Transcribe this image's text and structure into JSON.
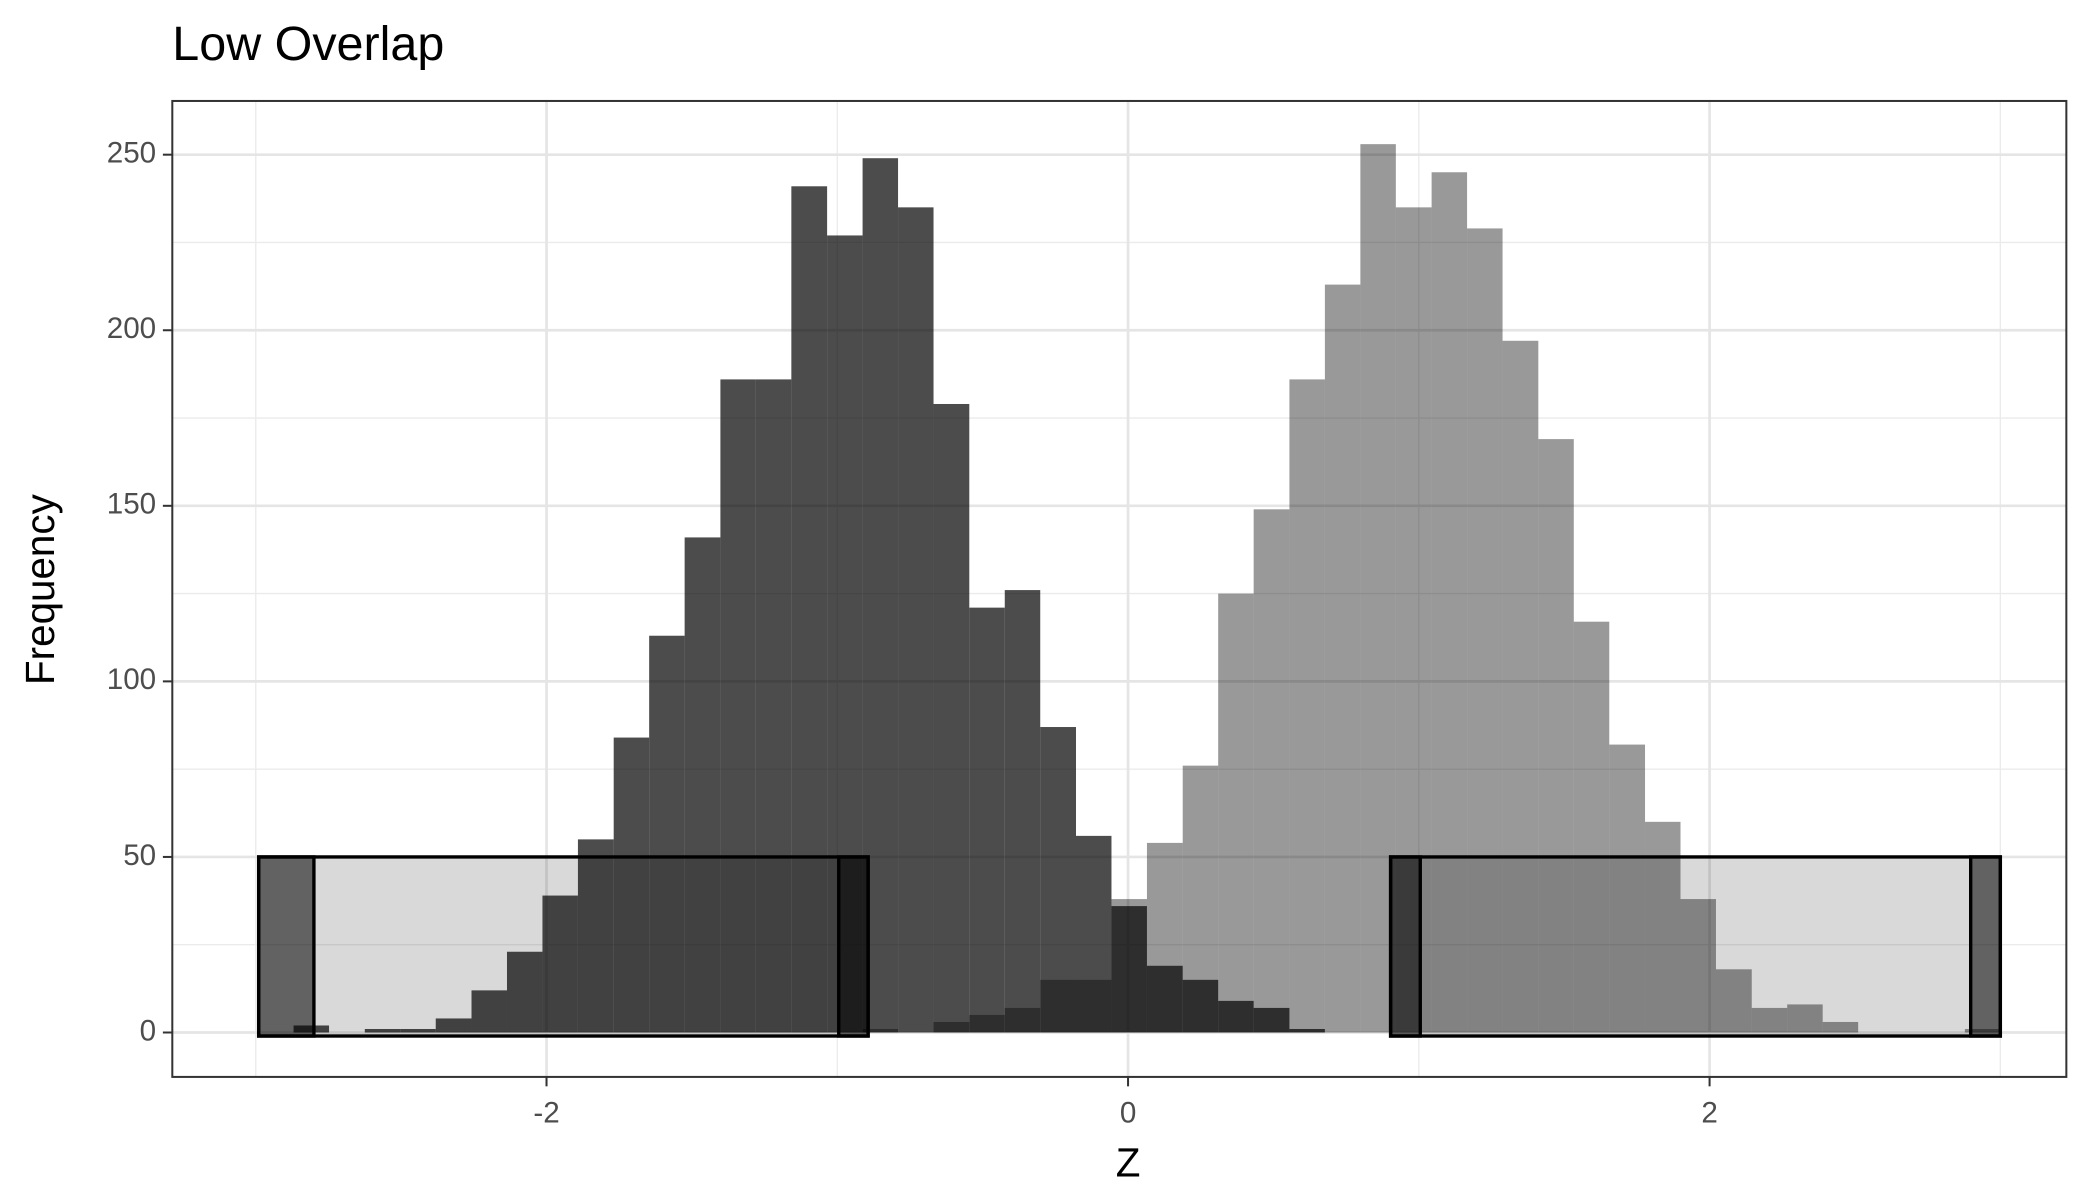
{
  "chart_data": {
    "type": "histogram",
    "title": "Low Overlap",
    "x_label": "Z",
    "y_label": "Frequency",
    "bins": [
      -2.87,
      -2.748,
      -2.625,
      -2.503,
      -2.381,
      -2.258,
      -2.136,
      -2.014,
      -1.892,
      -1.769,
      -1.647,
      -1.525,
      -1.402,
      -1.28,
      -1.158,
      -1.035,
      -0.913,
      -0.791,
      -0.669,
      -0.546,
      -0.424,
      -0.302,
      -0.179,
      -0.057,
      0.065,
      0.188,
      0.31,
      0.432,
      0.555,
      0.677,
      0.799,
      0.921,
      1.044,
      1.166,
      1.288,
      1.411,
      1.533,
      1.655,
      1.778,
      1.9,
      2.022,
      2.145,
      2.267,
      2.389,
      2.511,
      2.634,
      2.756,
      2.878,
      3.001
    ],
    "series": [
      {
        "color": "#000000",
        "opacity": 0.4,
        "values": [
          0,
          0,
          0,
          0,
          0,
          0,
          0,
          0,
          0,
          0,
          0,
          0,
          0,
          0,
          0,
          0,
          1,
          0,
          3,
          5,
          7,
          15,
          15,
          38,
          54,
          76,
          125,
          149,
          186,
          213,
          253,
          235,
          245,
          229,
          197,
          169,
          117,
          82,
          60,
          38,
          18,
          7,
          8,
          3,
          0,
          0,
          0,
          1
        ]
      },
      {
        "color": "#000000",
        "opacity": 0.7,
        "values": [
          2,
          0,
          1,
          1,
          4,
          12,
          23,
          39,
          55,
          84,
          113,
          141,
          186,
          186,
          241,
          227,
          249,
          235,
          179,
          121,
          126,
          87,
          56,
          36,
          19,
          15,
          9,
          7,
          1,
          0,
          0,
          0,
          0,
          0,
          0,
          0,
          0,
          0,
          0,
          0,
          0,
          0,
          0,
          0,
          0,
          0,
          0,
          0
        ]
      }
    ],
    "rects": [
      {
        "x": [
          -2.99,
          -0.894
        ],
        "y": [
          -1,
          50
        ],
        "color": "#000000",
        "opacity": 0.15
      },
      {
        "x": [
          -2.99,
          -2.8
        ],
        "y": [
          -1,
          50
        ],
        "color": "#000000",
        "opacity": 0.55
      },
      {
        "x": [
          -0.995,
          -0.894
        ],
        "y": [
          -1,
          50
        ],
        "color": "#000000",
        "opacity": 0.55
      },
      {
        "x": [
          0.903,
          3.0
        ],
        "y": [
          -1,
          50
        ],
        "color": "#000000",
        "opacity": 0.15
      },
      {
        "x": [
          0.903,
          1.005
        ],
        "y": [
          -1,
          50
        ],
        "color": "#000000",
        "opacity": 0.55
      },
      {
        "x": [
          2.898,
          3.0
        ],
        "y": [
          -1,
          50
        ],
        "color": "#000000",
        "opacity": 0.55
      }
    ],
    "xlim": [
      -3.287,
      3.227
    ],
    "ylim": [
      -12.65,
      265.3
    ],
    "xticks": [
      -2,
      0,
      2
    ],
    "yticks": [
      0,
      50,
      100,
      150,
      200,
      250
    ],
    "xminor": [
      -3,
      -1,
      1,
      3
    ],
    "yminor": [
      25,
      75,
      125,
      175,
      225
    ],
    "grid": true
  }
}
